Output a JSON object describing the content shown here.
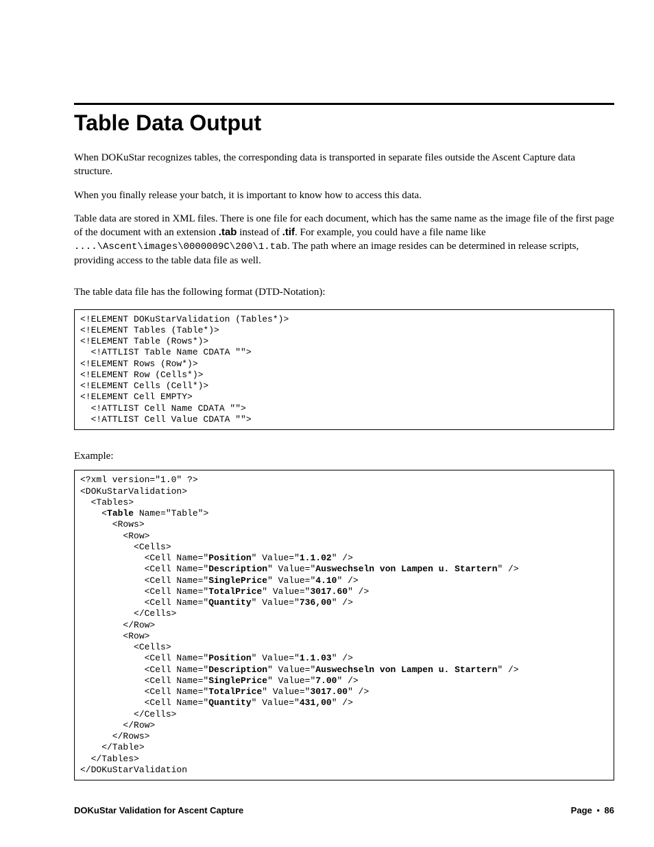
{
  "heading": "Table Data Output",
  "para1": "When DOKuStar recognizes tables, the corresponding data is transported in separate files outside the Ascent Capture data structure.",
  "para2": "When you finally release your batch, it is important to know how to access this data.",
  "para3_a": "Table data are stored in XML files. There is one file for each document, which has the same name as the image file of the first page of the document with an extension ",
  "ext_tab": ".tab",
  "para3_b": " instead of ",
  "ext_tif": ".tif",
  "para3_c": ". For example, you could have a file name like ",
  "path_example": "....\\Ascent\\images\\0000009C\\200\\1.tab",
  "para3_d": ". The path where an image resides can be determined in release scripts, providing access to the table data file as well.",
  "para4": "The table data file has the following format (DTD-Notation):",
  "dtd_lines": [
    "<!ELEMENT DOKuStarValidation (Tables*)>",
    "<!ELEMENT Tables (Table*)>",
    "<!ELEMENT Table (Rows*)>",
    "  <!ATTLIST Table Name CDATA \"\">",
    "<!ELEMENT Rows (Row*)>",
    "<!ELEMENT Row (Cells*)>",
    "<!ELEMENT Cells (Cell*)>",
    "<!ELEMENT Cell EMPTY>",
    "  <!ATTLIST Cell Name CDATA \"\">",
    "  <!ATTLIST Cell Value CDATA \"\">"
  ],
  "example_label": "Example:",
  "xml_lines": [
    {
      "t": "<?xml version=\"1.0\" ?>",
      "b": []
    },
    {
      "t": "<DOKuStarValidation>",
      "b": []
    },
    {
      "t": "  <Tables>",
      "b": []
    },
    {
      "t": "    <Table Name=\"Table\">",
      "b": [
        "Table"
      ]
    },
    {
      "t": "      <Rows>",
      "b": []
    },
    {
      "t": "        <Row>",
      "b": []
    },
    {
      "t": "          <Cells>",
      "b": []
    },
    {
      "t": "            <Cell Name=\"Position\" Value=\"1.1.02\" />",
      "b": [
        "Position",
        "1.1.02"
      ]
    },
    {
      "t": "            <Cell Name=\"Description\" Value=\"Auswechseln von Lampen u. Startern\" />",
      "b": [
        "Description",
        "Auswechseln von Lampen u. Startern"
      ]
    },
    {
      "t": "            <Cell Name=\"SinglePrice\" Value=\"4.10\" />",
      "b": [
        "SinglePrice",
        "4.10"
      ]
    },
    {
      "t": "            <Cell Name=\"TotalPrice\" Value=\"3017.60\" />",
      "b": [
        "TotalPrice",
        "3017.60"
      ]
    },
    {
      "t": "            <Cell Name=\"Quantity\" Value=\"736,00\" />",
      "b": [
        "Quantity",
        "736,00"
      ]
    },
    {
      "t": "          </Cells>",
      "b": []
    },
    {
      "t": "        </Row>",
      "b": []
    },
    {
      "t": "        <Row>",
      "b": []
    },
    {
      "t": "          <Cells>",
      "b": []
    },
    {
      "t": "            <Cell Name=\"Position\" Value=\"1.1.03\" />",
      "b": [
        "Position",
        "1.1.03"
      ]
    },
    {
      "t": "            <Cell Name=\"Description\" Value=\"Auswechseln von Lampen u. Startern\" />",
      "b": [
        "Description",
        "Auswechseln von Lampen u. Startern"
      ]
    },
    {
      "t": "            <Cell Name=\"SinglePrice\" Value=\"7.00\" />",
      "b": [
        "SinglePrice",
        "7.00"
      ]
    },
    {
      "t": "            <Cell Name=\"TotalPrice\" Value=\"3017.00\" />",
      "b": [
        "TotalPrice",
        "3017.00"
      ]
    },
    {
      "t": "            <Cell Name=\"Quantity\" Value=\"431,00\" />",
      "b": [
        "Quantity",
        "431,00"
      ]
    },
    {
      "t": "          </Cells>",
      "b": []
    },
    {
      "t": "        </Row>",
      "b": []
    },
    {
      "t": "      </Rows>",
      "b": []
    },
    {
      "t": "    </Table>",
      "b": []
    },
    {
      "t": "  </Tables>",
      "b": []
    },
    {
      "t": "</DOKuStarValidation",
      "b": []
    }
  ],
  "footer_left": "DOKuStar Validation for Ascent Capture",
  "footer_page_label": "Page",
  "footer_page_num": "86"
}
